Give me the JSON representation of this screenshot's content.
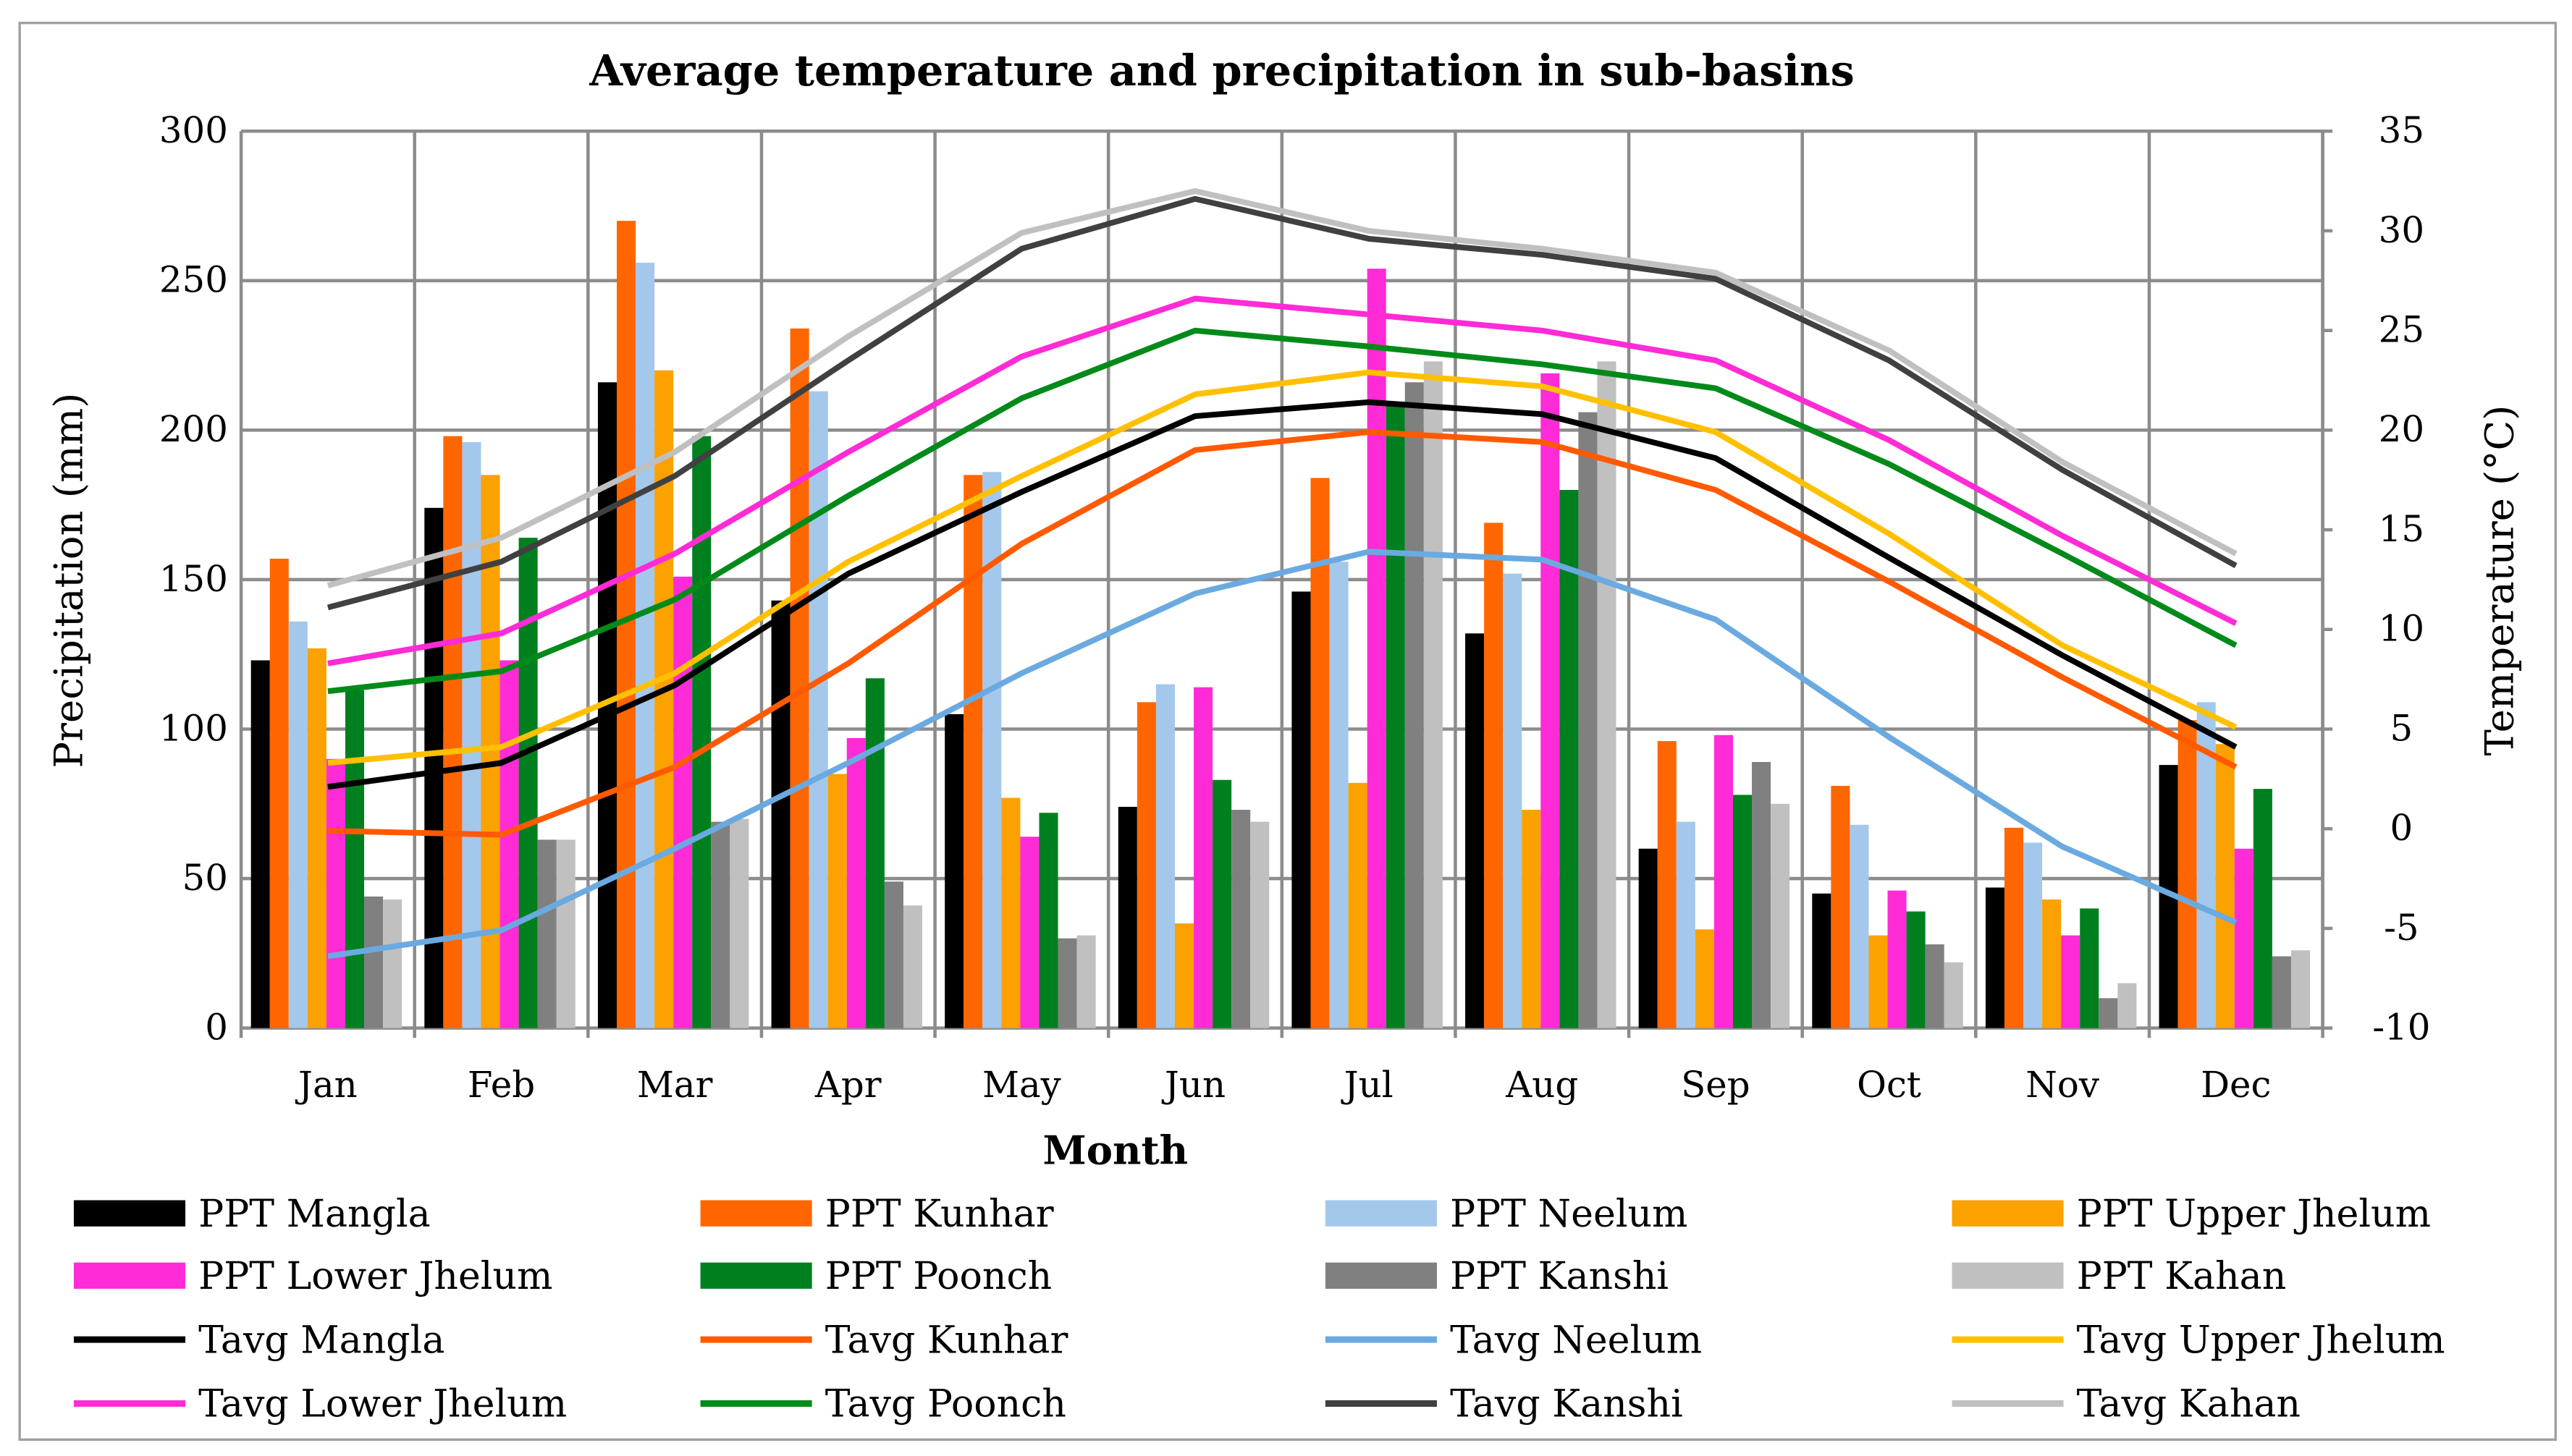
{
  "chart_data": {
    "type": "bar+line",
    "title": "Average temperature and precipitation in sub-basins",
    "xlabel": "Month",
    "ylabel": "Precipitation (mm)",
    "y2label": "Temperature (°C)",
    "ylim": [
      0,
      300
    ],
    "y2lim": [
      -10,
      35
    ],
    "yticks": [
      "0",
      "50",
      "100",
      "150",
      "200",
      "250",
      "300"
    ],
    "y2ticks": [
      "-10",
      "-5",
      "0",
      "5",
      "10",
      "15",
      "20",
      "25",
      "30",
      "35"
    ],
    "grid": true,
    "legend_position": "bottom",
    "categories": [
      "Jan",
      "Feb",
      "Mar",
      "Apr",
      "May",
      "Jun",
      "Jul",
      "Aug",
      "Sep",
      "Oct",
      "Nov",
      "Dec"
    ],
    "bar_series": [
      {
        "name": "PPT Mangla",
        "color": "#000000",
        "values": [
          123,
          174,
          216,
          143,
          105,
          74,
          146,
          132,
          60,
          45,
          47,
          88
        ]
      },
      {
        "name": "PPT Kunhar",
        "color": "#ff6600",
        "values": [
          157,
          198,
          270,
          234,
          185,
          109,
          184,
          169,
          96,
          81,
          67,
          103
        ]
      },
      {
        "name": "PPT Neelum",
        "color": "#a3c8ec",
        "values": [
          136,
          196,
          256,
          213,
          186,
          115,
          156,
          152,
          69,
          68,
          62,
          109
        ]
      },
      {
        "name": "PPT Upper Jhelum",
        "color": "#fba100",
        "values": [
          127,
          185,
          220,
          85,
          77,
          35,
          82,
          73,
          33,
          31,
          43,
          95
        ]
      },
      {
        "name": "PPT Lower Jhelum",
        "color": "#ff2bd6",
        "values": [
          90,
          123,
          151,
          97,
          64,
          114,
          254,
          219,
          98,
          46,
          31,
          60
        ]
      },
      {
        "name": "PPT Poonch",
        "color": "#007f1f",
        "values": [
          113,
          164,
          198,
          117,
          72,
          83,
          209,
          180,
          78,
          39,
          40,
          80
        ]
      },
      {
        "name": "PPT Kanshi",
        "color": "#808080",
        "values": [
          44,
          63,
          69,
          49,
          30,
          73,
          216,
          206,
          89,
          28,
          10,
          24
        ]
      },
      {
        "name": "PPT Kahan",
        "color": "#c0c0c0",
        "values": [
          43,
          63,
          70,
          41,
          31,
          69,
          223,
          223,
          75,
          22,
          15,
          26
        ]
      }
    ],
    "line_series": [
      {
        "name": "Tavg Mangla",
        "color": "#000000",
        "values": [
          2.1,
          3.3,
          7.2,
          12.8,
          16.9,
          20.7,
          21.4,
          20.8,
          18.6,
          13.6,
          8.7,
          4.1
        ]
      },
      {
        "name": "Tavg Kunhar",
        "color": "#ff5a00",
        "values": [
          -0.1,
          -0.3,
          3.1,
          8.3,
          14.3,
          19.0,
          19.9,
          19.4,
          17.0,
          12.4,
          7.6,
          3.1
        ]
      },
      {
        "name": "Tavg Neelum",
        "color": "#6aaae0",
        "values": [
          -6.4,
          -5.1,
          -1.0,
          3.3,
          7.8,
          11.8,
          13.9,
          13.5,
          10.5,
          4.6,
          -0.9,
          -4.7
        ]
      },
      {
        "name": "Tavg Upper Jhelum",
        "color": "#ffc000",
        "values": [
          3.3,
          4.1,
          7.8,
          13.4,
          17.7,
          21.8,
          22.9,
          22.2,
          19.9,
          14.8,
          9.2,
          5.1
        ]
      },
      {
        "name": "Tavg Lower Jhelum",
        "color": "#ff2bd6",
        "values": [
          8.3,
          9.8,
          13.8,
          18.9,
          23.7,
          26.6,
          25.8,
          25.0,
          23.5,
          19.5,
          14.7,
          10.3
        ]
      },
      {
        "name": "Tavg Poonch",
        "color": "#008a1a",
        "values": [
          6.9,
          7.9,
          11.5,
          16.7,
          21.6,
          25.0,
          24.2,
          23.3,
          22.1,
          18.3,
          13.8,
          9.2
        ]
      },
      {
        "name": "Tavg Kanshi",
        "color": "#404040",
        "values": [
          11.1,
          13.4,
          17.7,
          23.5,
          29.1,
          31.6,
          29.6,
          28.8,
          27.6,
          23.5,
          18.0,
          13.2
        ]
      },
      {
        "name": "Tavg Kahan",
        "color": "#c0c0c0",
        "values": [
          12.2,
          14.6,
          18.9,
          24.7,
          29.9,
          32.0,
          30.0,
          29.1,
          27.9,
          24.0,
          18.4,
          13.8
        ]
      }
    ]
  }
}
